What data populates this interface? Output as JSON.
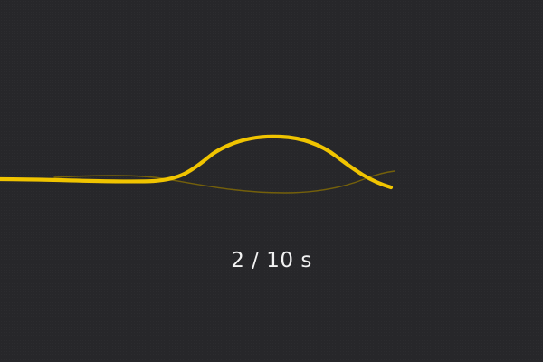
{
  "animation": {
    "elapsed": 2,
    "total": 10,
    "unit": "s",
    "separator": "/"
  },
  "colors": {
    "background": "#27272a",
    "wave_primary": "#f0c400",
    "wave_trail": "#8f7400",
    "text": "#f2f2f2"
  }
}
